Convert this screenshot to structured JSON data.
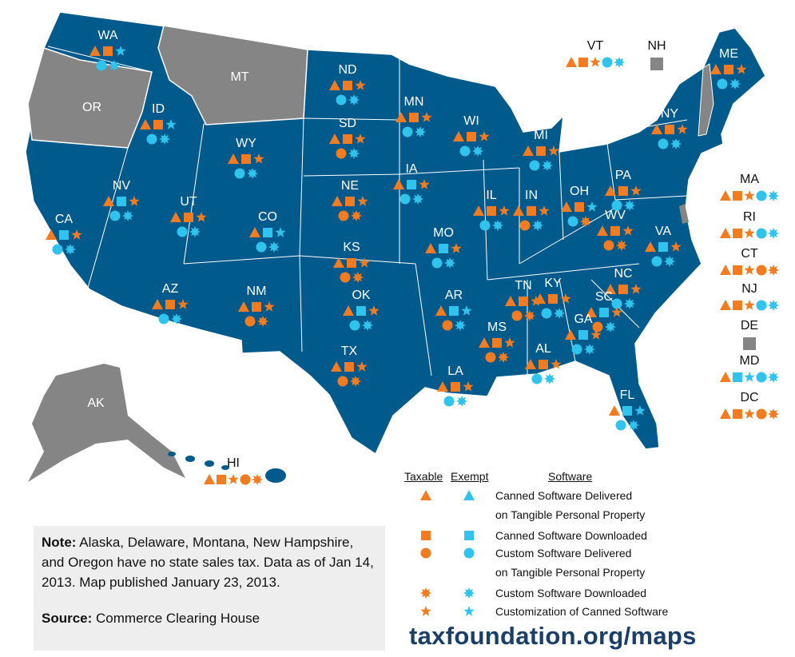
{
  "map_color": "#005a8c",
  "no_tax_color": "#858585",
  "taxable_color": "#f47b20",
  "exempt_color": "#2fc3ee",
  "legend": {
    "headers": [
      "Taxable",
      "Exempt",
      "Software"
    ],
    "items": [
      [
        "Canned Software Delivered",
        "on Tangible Personal Property"
      ],
      [
        "Canned Software Downloaded"
      ],
      [
        "Custom Software Delivered",
        "on Tangible Personal Property"
      ],
      [
        "Custom Software Downloaded"
      ],
      [
        "Customization of Canned Software"
      ]
    ]
  },
  "states": [
    {
      "label": "WA",
      "software": [
        "Taxable",
        "Taxable",
        "Exempt",
        "Exempt",
        "Exempt"
      ]
    },
    {
      "label": "ID",
      "software": [
        "Taxable",
        "Taxable",
        "Exempt",
        "Exempt",
        "Exempt"
      ]
    },
    {
      "label": "ND",
      "software": [
        "Taxable",
        "Taxable",
        "Exempt",
        "Exempt",
        "Taxable"
      ]
    },
    {
      "label": "SD",
      "software": [
        "Taxable",
        "Taxable",
        "Taxable",
        "Exempt",
        "Taxable"
      ]
    },
    {
      "label": "MN",
      "software": [
        "Taxable",
        "Taxable",
        "Exempt",
        "Exempt",
        "Taxable"
      ]
    },
    {
      "label": "WY",
      "software": [
        "Taxable",
        "Taxable",
        "Exempt",
        "Exempt",
        "Taxable"
      ]
    },
    {
      "label": "NE",
      "software": [
        "Taxable",
        "Taxable",
        "Taxable",
        "Taxable",
        "Taxable"
      ]
    },
    {
      "label": "IA",
      "software": [
        "Taxable",
        "Exempt",
        "Exempt",
        "Exempt",
        "Taxable"
      ]
    },
    {
      "label": "WI",
      "software": [
        "Taxable",
        "Taxable",
        "Exempt",
        "Exempt",
        "Taxable"
      ]
    },
    {
      "label": "MI",
      "software": [
        "Taxable",
        "Taxable",
        "Exempt",
        "Exempt",
        "Taxable"
      ]
    },
    {
      "label": "NV",
      "software": [
        "Taxable",
        "Exempt",
        "Exempt",
        "Exempt",
        "Taxable"
      ]
    },
    {
      "label": "UT",
      "software": [
        "Taxable",
        "Taxable",
        "Exempt",
        "Exempt",
        "Taxable"
      ]
    },
    {
      "label": "CO",
      "software": [
        "Taxable",
        "Exempt",
        "Exempt",
        "Exempt",
        "Exempt"
      ]
    },
    {
      "label": "CA",
      "software": [
        "Taxable",
        "Exempt",
        "Exempt",
        "Exempt",
        "Taxable"
      ]
    },
    {
      "label": "KS",
      "software": [
        "Taxable",
        "Taxable",
        "Taxable",
        "Taxable",
        "Taxable"
      ]
    },
    {
      "label": "MO",
      "software": [
        "Taxable",
        "Exempt",
        "Exempt",
        "Exempt",
        "Taxable"
      ]
    },
    {
      "label": "IL",
      "software": [
        "Taxable",
        "Taxable",
        "Exempt",
        "Exempt",
        "Taxable"
      ]
    },
    {
      "label": "IN",
      "software": [
        "Taxable",
        "Taxable",
        "Taxable",
        "Exempt",
        "Taxable"
      ]
    },
    {
      "label": "OH",
      "software": [
        "Taxable",
        "Taxable",
        "Exempt",
        "Taxable",
        "Exempt"
      ]
    },
    {
      "label": "KY",
      "software": [
        "Taxable",
        "Taxable",
        "Exempt",
        "Exempt",
        "Taxable"
      ]
    },
    {
      "label": "WV",
      "software": [
        "Taxable",
        "Taxable",
        "Taxable",
        "Taxable",
        "Taxable"
      ]
    },
    {
      "label": "PA",
      "software": [
        "Taxable",
        "Taxable",
        "Exempt",
        "Exempt",
        "Taxable"
      ]
    },
    {
      "label": "NY",
      "software": [
        "Taxable",
        "Taxable",
        "Exempt",
        "Exempt",
        "Taxable"
      ]
    },
    {
      "label": "VA",
      "software": [
        "Taxable",
        "Exempt",
        "Exempt",
        "Exempt",
        "Taxable"
      ]
    },
    {
      "label": "NC",
      "software": [
        "Taxable",
        "Taxable",
        "Exempt",
        "Exempt",
        "Taxable"
      ]
    },
    {
      "label": "TN",
      "software": [
        "Taxable",
        "Taxable",
        "Taxable",
        "Taxable",
        "Taxable"
      ]
    },
    {
      "label": "SC",
      "software": [
        "Taxable",
        "Exempt",
        "Taxable",
        "Exempt",
        "Taxable"
      ]
    },
    {
      "label": "GA",
      "software": [
        "Taxable",
        "Exempt",
        "Exempt",
        "Exempt",
        "Taxable"
      ]
    },
    {
      "label": "AL",
      "software": [
        "Taxable",
        "Taxable",
        "Exempt",
        "Exempt",
        "Taxable"
      ]
    },
    {
      "label": "MS",
      "software": [
        "Taxable",
        "Taxable",
        "Taxable",
        "Taxable",
        "Taxable"
      ]
    },
    {
      "label": "LA",
      "software": [
        "Taxable",
        "Taxable",
        "Exempt",
        "Exempt",
        "Taxable"
      ]
    },
    {
      "label": "AR",
      "software": [
        "Taxable",
        "Exempt",
        "Taxable",
        "Exempt",
        "Exempt"
      ]
    },
    {
      "label": "OK",
      "software": [
        "Taxable",
        "Exempt",
        "Exempt",
        "Exempt",
        "Taxable"
      ]
    },
    {
      "label": "TX",
      "software": [
        "Taxable",
        "Taxable",
        "Taxable",
        "Taxable",
        "Taxable"
      ]
    },
    {
      "label": "NM",
      "software": [
        "Taxable",
        "Taxable",
        "Taxable",
        "Taxable",
        "Taxable"
      ]
    },
    {
      "label": "AZ",
      "software": [
        "Taxable",
        "Taxable",
        "Exempt",
        "Exempt",
        "Taxable"
      ]
    },
    {
      "label": "FL",
      "software": [
        "Taxable",
        "Exempt",
        "Exempt",
        "Exempt",
        "Exempt"
      ]
    },
    {
      "label": "ME",
      "software": [
        "Taxable",
        "Taxable",
        "Exempt",
        "Exempt",
        "Taxable"
      ]
    },
    {
      "label": "HI",
      "software": [
        "Taxable",
        "Taxable",
        "Taxable",
        "Taxable",
        "Taxable"
      ]
    },
    {
      "label": "VT",
      "software": [
        "Taxable",
        "Taxable",
        "Exempt",
        "Exempt",
        "Taxable"
      ]
    },
    {
      "label": "MA",
      "software": [
        "Taxable",
        "Taxable",
        "Exempt",
        "Exempt",
        "Taxable"
      ]
    },
    {
      "label": "RI",
      "software": [
        "Taxable",
        "Taxable",
        "Exempt",
        "Exempt",
        "Taxable"
      ]
    },
    {
      "label": "CT",
      "software": [
        "Taxable",
        "Taxable",
        "Taxable",
        "Taxable",
        "Taxable"
      ]
    },
    {
      "label": "NJ",
      "software": [
        "Taxable",
        "Taxable",
        "Exempt",
        "Exempt",
        "Taxable"
      ]
    },
    {
      "label": "MD",
      "software": [
        "Taxable",
        "Exempt",
        "Exempt",
        "Exempt",
        "Exempt"
      ]
    },
    {
      "label": "DC",
      "software": [
        "Taxable",
        "Taxable",
        "Taxable",
        "Taxable",
        "Taxable"
      ]
    }
  ],
  "no_tax_states": [
    {
      "label": "OR"
    },
    {
      "label": "MT"
    },
    {
      "label": "AK"
    },
    {
      "label": "NH"
    },
    {
      "label": "DE"
    }
  ],
  "note": {
    "label": "Note:",
    "text": "Alaska, Delaware, Montana, New Hampshire, and Oregon have no state sales tax. Data as of Jan 14, 2013. Map published January 23, 2013."
  },
  "source": {
    "label": "Source:",
    "text": "Commerce Clearing House"
  },
  "url": "taxfoundation.org/maps"
}
